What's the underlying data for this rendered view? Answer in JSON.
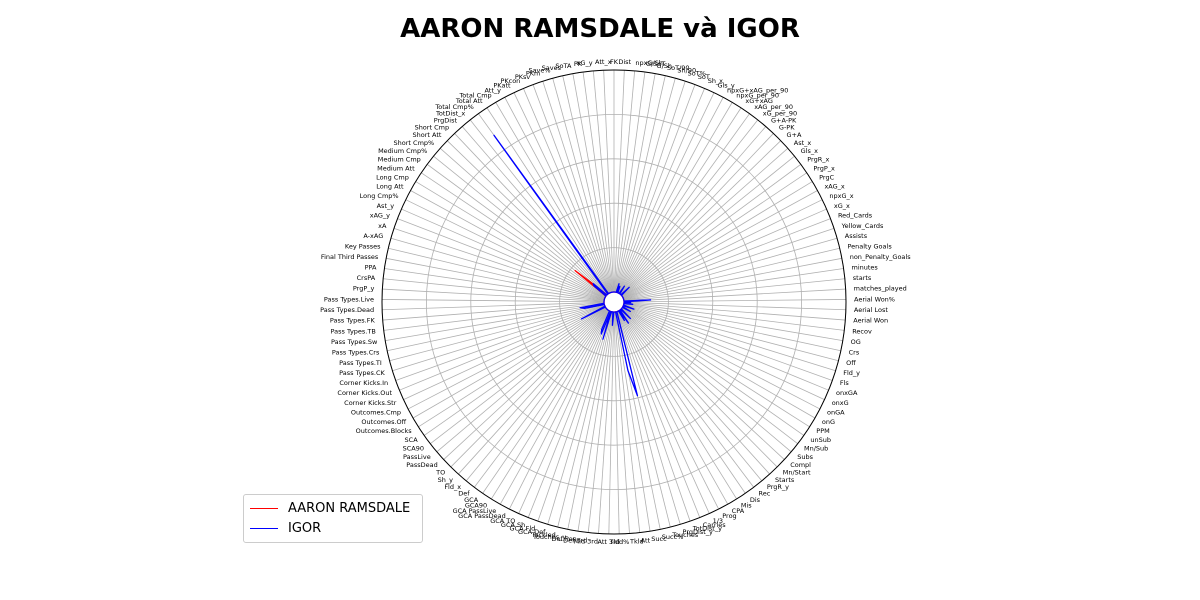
{
  "chart_data": {
    "type": "radar",
    "title": "AARON RAMSDALE và IGOR",
    "legend_position": "bottom-left",
    "grid": true,
    "rlim": [
      0,
      1
    ],
    "rings": [
      0.2,
      0.4,
      0.6,
      0.8,
      1.0
    ],
    "categories": [
      "FK",
      "Dist",
      "npxG/Sh",
      "G/SoT",
      "G/Sh",
      "SoT/90",
      "Sh/90",
      "SoT%",
      "SoT",
      "Sh_x",
      "Gls_y",
      "npxG+xAG_per_90",
      "npxG_per_90",
      "xG+xAG",
      "xAG_per_90",
      "xG_per_90",
      "G+A-PK",
      "G-PK",
      "G+A",
      "Ast_x",
      "Gls_x",
      "PrgR_x",
      "PrgP_x",
      "PrgC",
      "xAG_x",
      "npxG_x",
      "xG_x",
      "Red_Cards",
      "Yellow_Cards",
      "Assists",
      "Penalty Goals",
      "non_Penalty_Goals",
      "minutes",
      "starts",
      "matches_played",
      "Aerial Won%",
      "Aerial Lost",
      "Aerial Won",
      "Recov",
      "OG",
      "Crs",
      "Off",
      "Fld_y",
      "Fls",
      "onxGA",
      "onxG",
      "onGA",
      "onG",
      "PPM",
      "unSub",
      "Mn/Sub",
      "Subs",
      "Compl",
      "Mn/Start",
      "Starts",
      "PrgR_y",
      "Rec",
      "Dis",
      "Mis",
      "CPA",
      "Prog",
      "1/3",
      "Carries",
      "TotDist_y",
      "PrgDist_y",
      "Touches",
      "Succ%",
      "Succ",
      "Att",
      "Tkld",
      "Tkld%",
      "Att 3rd",
      "Mid 3rd",
      "Def 3rd",
      "Def Pen",
      "Touches_y",
      "Tackled",
      "GCA Def",
      "GCA Fld",
      "GCA Sh",
      "GCA TO",
      "GCA PassDead",
      "GCA PassLive",
      "GCA90",
      "GCA",
      "Def",
      "Fld_x",
      "Sh_y",
      "TO",
      "PassDead",
      "PassLive",
      "SCA90",
      "SCA",
      "Outcomes.Blocks",
      "Outcomes.Off",
      "Outcomes.Cmp",
      "Corner Kicks.Str",
      "Corner Kicks.Out",
      "Corner Kicks.In",
      "Pass Types.CK",
      "Pass Types.TI",
      "Pass Types.Crs",
      "Pass Types.Sw",
      "Pass Types.TB",
      "Pass Types.FK",
      "Pass Types.Dead",
      "Pass Types.Live",
      "PrgP_y",
      "CrsPA",
      "PPA",
      "Final Third Passes",
      "Key Passes",
      "A-xAG",
      "xA",
      "xAG_y",
      "Ast_y",
      "Long Cmp%",
      "Long Att",
      "Long Cmp",
      "Medium Att",
      "Medium Cmp",
      "Medium Cmp%",
      "Short Cmp%",
      "Short Att",
      "Short Cmp",
      "PrgDist",
      "TotDist_x",
      "Total Cmp%",
      "Total Att",
      "Total Cmp",
      "Att_y",
      "PKatt",
      "PKcon",
      "PKsv",
      "PKm",
      "Save%",
      "Saves",
      "SoTA",
      "PK",
      "xG_y",
      "Att_x"
    ],
    "series": [
      {
        "name": "AARON RAMSDALE",
        "color": "#ff0000",
        "values": {
          "Medium Cmp%": 0.18,
          "Short Cmp%": 0.06,
          "Total Cmp%": 0.03
        }
      },
      {
        "name": "IGOR",
        "color": "#0000ff",
        "values": {
          "Total Cmp%": 0.88,
          "Short Cmp%": 0.08,
          "Medium Cmp%": 0.07,
          "Sh/90": 0.04,
          "SoT": 0.03,
          "xG+xAG": 0.04,
          "G+A": 0.05,
          "matches_played": 0.12,
          "Aerial Lost": 0.03,
          "Recov": 0.04,
          "Fls": 0.05,
          "onG": 0.04,
          "Mn/Start": 0.06,
          "CPA": 0.05,
          "Dis": 0.07,
          "Touches": 0.39,
          "Succ%": 0.27,
          "Mid 3rd": 0.06,
          "GCA Def": 0.13,
          "GCA Sh": 0.11,
          "GCA TO": 0.09,
          "Outcomes.Cmp": 0.12,
          "Pass Types.Crs": 0.09,
          "Pass Types.Sw": 0.11
        }
      }
    ]
  }
}
